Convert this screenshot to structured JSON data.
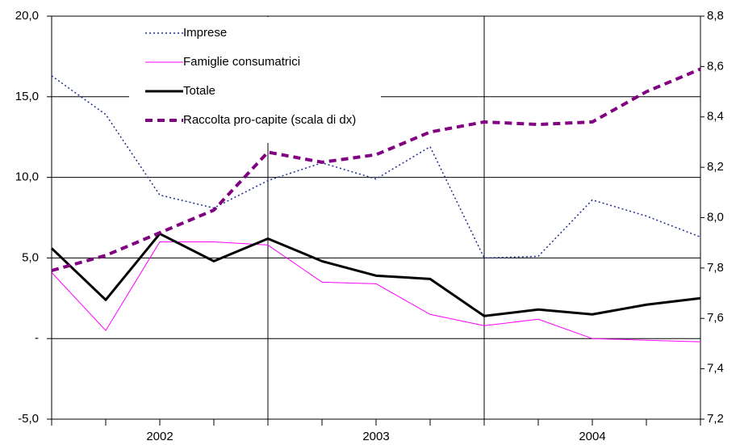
{
  "chart_data": {
    "type": "line",
    "categories": [
      null,
      null,
      "2002",
      null,
      null,
      null,
      "2003",
      null,
      null,
      null,
      "2004",
      null,
      null
    ],
    "series": [
      {
        "name": "Imprese",
        "color": "#1f2f8f",
        "style": "dotted",
        "values": [
          16.3,
          13.9,
          8.9,
          8.1,
          9.8,
          10.9,
          9.9,
          11.9,
          5.0,
          5.1,
          8.6,
          7.6,
          6.3
        ]
      },
      {
        "name": "Famiglie consumatrici",
        "color": "#ff00ff",
        "style": "solid",
        "values": [
          4.1,
          0.5,
          6.0,
          6.0,
          5.8,
          3.5,
          3.4,
          1.5,
          0.8,
          1.2,
          0.0,
          -0.1,
          -0.2
        ]
      },
      {
        "name": "Totale",
        "color": "#000000",
        "style": "thick",
        "values": [
          5.6,
          2.4,
          6.5,
          4.8,
          6.2,
          4.8,
          3.9,
          3.7,
          1.4,
          1.8,
          1.5,
          2.1,
          2.5
        ]
      },
      {
        "name": "Raccolta pro-capite (scala di dx)",
        "color": "#800080",
        "style": "dashed",
        "axis": "y2",
        "values": [
          7.79,
          7.85,
          7.94,
          8.03,
          8.26,
          8.22,
          8.25,
          8.34,
          8.38,
          8.37,
          8.38,
          8.5,
          8.59
        ]
      }
    ],
    "ylim": [
      -5,
      20
    ],
    "yticks": [
      {
        "value": -5,
        "label": "-5,0"
      },
      {
        "value": 0,
        "label": "-"
      },
      {
        "value": 5,
        "label": "5,0"
      },
      {
        "value": 10,
        "label": "10,0"
      },
      {
        "value": 15,
        "label": "15,0"
      },
      {
        "value": 20,
        "label": "20,0"
      }
    ],
    "y2lim": [
      7.2,
      8.8
    ],
    "y2ticks": [
      {
        "value": 7.2,
        "label": "7,2"
      },
      {
        "value": 7.4,
        "label": "7,4"
      },
      {
        "value": 7.6,
        "label": "7,6"
      },
      {
        "value": 7.8,
        "label": "7,8"
      },
      {
        "value": 8.0,
        "label": "8,0"
      },
      {
        "value": 8.2,
        "label": "8,2"
      },
      {
        "value": 8.4,
        "label": "8,4"
      },
      {
        "value": 8.6,
        "label": "8,6"
      },
      {
        "value": 8.8,
        "label": "8,8"
      }
    ],
    "grid": true
  }
}
